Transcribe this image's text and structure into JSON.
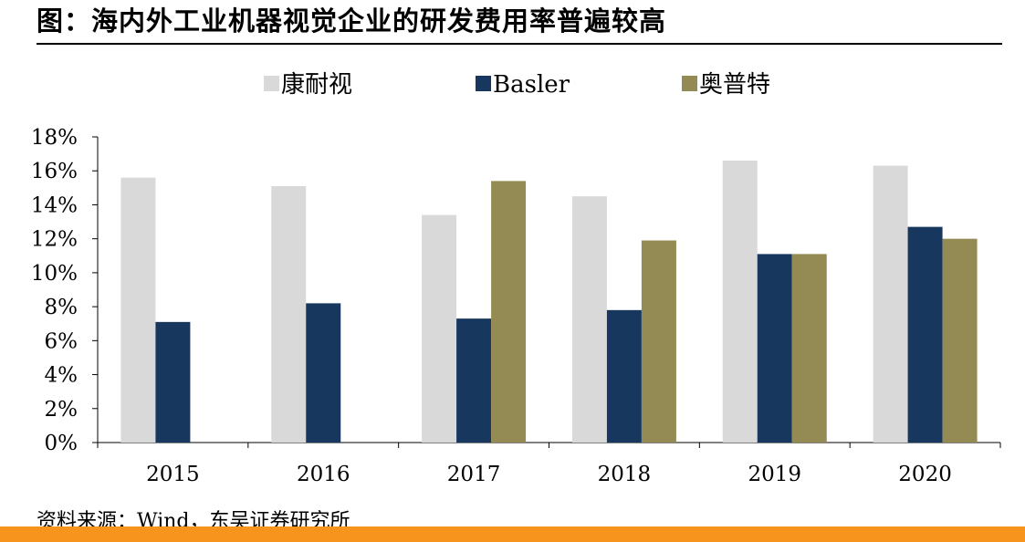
{
  "title": "图：海内外工业机器视觉企业的研发费用率普遍较高",
  "source": "资料来源：Wind，东吴证券研究所",
  "colors": {
    "footer_bar": "#F7941D",
    "axis": "#000000"
  },
  "chart_data": {
    "type": "bar",
    "categories": [
      "2015",
      "2016",
      "2017",
      "2018",
      "2019",
      "2020"
    ],
    "series": [
      {
        "name": "康耐视",
        "color": "#D9D9D9",
        "values": [
          15.6,
          15.1,
          13.4,
          14.5,
          16.6,
          16.3
        ]
      },
      {
        "name": "Basler",
        "color": "#17375E",
        "values": [
          7.1,
          8.2,
          7.3,
          7.8,
          11.1,
          12.7
        ]
      },
      {
        "name": "奥普特",
        "color": "#948A54",
        "values": [
          null,
          null,
          15.4,
          11.9,
          11.1,
          12.0
        ]
      }
    ],
    "ylim": [
      0,
      18
    ],
    "yticks": [
      0,
      2,
      4,
      6,
      8,
      10,
      12,
      14,
      16,
      18
    ],
    "ytick_labels": [
      "0%",
      "2%",
      "4%",
      "6%",
      "8%",
      "10%",
      "12%",
      "14%",
      "16%",
      "18%"
    ],
    "grid": false,
    "legend_position": "top-center"
  }
}
